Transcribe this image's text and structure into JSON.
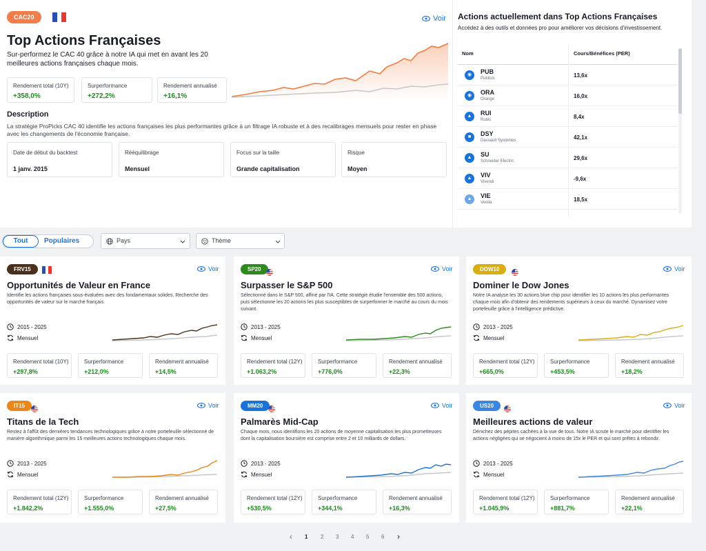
{
  "featured": {
    "tag": "CAC20",
    "tag_color": "#f07e4d",
    "voir": "Voir",
    "title": "Top Actions Françaises",
    "subtitle": "Sur-performez le CAC 40 grâce à notre IA qui met en avant les 20 meilleures actions françaises chaque mois.",
    "stats": [
      {
        "label": "Rendement total (10Y)",
        "value": "+358,0%"
      },
      {
        "label": "Surperformance",
        "value": "+272,2%"
      },
      {
        "label": "Rendement annualisé",
        "value": "+16,1%"
      }
    ],
    "description_heading": "Description",
    "description": "La stratégie ProPicks CAC 40 identifie les actions françaises les plus performantes grâce à un filtrage IA robuste et à des recalibrages mensuels pour rester en phase avec les changements de l'économie française.",
    "info": [
      {
        "label": "Date de début du backtest",
        "value": "1 janv. 2015"
      },
      {
        "label": "Rééquilibrage",
        "value": "Mensuel"
      },
      {
        "label": "Focus sur la taille",
        "value": "Grande capitalisation"
      },
      {
        "label": "Risque",
        "value": "Moyen"
      }
    ]
  },
  "holdings": {
    "title": "Actions actuellement dans Top Actions Françaises",
    "subtitle": "Accédez à des outils et données pro pour améliorer vos décisions d'investissement.",
    "col_name": "Nom",
    "col_per": "Cours/Bénéfices (PER)",
    "rows": [
      {
        "ticker": "PUB",
        "name": "Publicis",
        "per": "13,6x"
      },
      {
        "ticker": "ORA",
        "name": "Orange",
        "per": "16,0x"
      },
      {
        "ticker": "RUI",
        "name": "Rubis",
        "per": "8,4x"
      },
      {
        "ticker": "DSY",
        "name": "Dassault Systèmes",
        "per": "42,1x"
      },
      {
        "ticker": "SU",
        "name": "Schneider Electric",
        "per": "29,6x"
      },
      {
        "ticker": "VIV",
        "name": "Vivendi",
        "per": "-9,6x"
      },
      {
        "ticker": "VIE",
        "name": "Veolia",
        "per": "18,5x"
      }
    ]
  },
  "filters": {
    "tab_all": "Tout",
    "tab_popular": "Populaires",
    "country": "Pays",
    "theme": "Thème"
  },
  "cards": [
    {
      "tag": "FRV15",
      "color": "#4a2f1c",
      "flag": "fr",
      "voir": "Voir",
      "title": "Opportunités de Valeur en France",
      "desc": "Identifie les actions françaises sous-évaluées avec des fondamentaux solides. Recherche des opportunités de valeur sur le marché français.",
      "period": "2015 - 2025",
      "rebalance": "Mensuel",
      "stats": [
        {
          "label": "Rendement total (10Y)",
          "value": "+297,8%"
        },
        {
          "label": "Surperformance",
          "value": "+212,0%"
        },
        {
          "label": "Rendement annualisé",
          "value": "+14,5%"
        }
      ]
    },
    {
      "tag": "SP20",
      "color": "#2e8a1f",
      "flag": "us",
      "voir": "Voir",
      "title": "Surpasser le S&P 500",
      "desc": "Sélectionné dans le S&P 500, affiné par l'IA. Cette stratégie étudie l'ensemble des 500 actions, puis sélectionne les 20 actions les plus susceptibles de surperformer le marché au cours du mois suivant.",
      "period": "2013 - 2025",
      "rebalance": "Mensuel",
      "stats": [
        {
          "label": "Rendement total (12Y)",
          "value": "+1.063,2%"
        },
        {
          "label": "Surperformance",
          "value": "+776,0%"
        },
        {
          "label": "Rendement annualisé",
          "value": "+22,3%"
        }
      ]
    },
    {
      "tag": "DOW10",
      "color": "#d9ad14",
      "flag": "us",
      "voir": "Voir",
      "title": "Dominer le Dow Jones",
      "desc": "Notre IA analyse les 30 actions blue chip pour identifier les 10 actions les plus performantes chaque mois afin d'obtenir des rendements supérieurs à ceux du marché. Dynamisez votre portefeuille grâce à l'intelligence prédictive.",
      "period": "2013 - 2025",
      "rebalance": "Mensuel",
      "stats": [
        {
          "label": "Rendement total (12Y)",
          "value": "+665,0%"
        },
        {
          "label": "Surperformance",
          "value": "+453,5%"
        },
        {
          "label": "Rendement annualisé",
          "value": "+18,2%"
        }
      ]
    },
    {
      "tag": "IT15",
      "color": "#e8871a",
      "flag": "us",
      "voir": "Voir",
      "title": "Titans de la Tech",
      "desc": "Restez à l'affût des dernières tendances technologiques grâce à notre portefeuille sélectionné de manière algorithmique parmi les 15 meilleures actions technologiques chaque mois.",
      "period": "2013 - 2025",
      "rebalance": "Mensuel",
      "stats": [
        {
          "label": "Rendement total (12Y)",
          "value": "+1.842,2%"
        },
        {
          "label": "Surperformance",
          "value": "+1.555,0%"
        },
        {
          "label": "Rendement annualisé",
          "value": "+27,5%"
        }
      ]
    },
    {
      "tag": "MM20",
      "color": "#1a73d8",
      "flag": "us",
      "voir": "Voir",
      "title": "Palmarès Mid-Cap",
      "desc": "Chaque mois, nous identifions les 20 actions de moyenne capitalisation les plus prometteuses dont la capitalisation boursière est comprise entre 2 et 10 milliards de dollars.",
      "period": "2013 - 2025",
      "rebalance": "Mensuel",
      "stats": [
        {
          "label": "Rendement total (12Y)",
          "value": "+530,5%"
        },
        {
          "label": "Surperformance",
          "value": "+344,1%"
        },
        {
          "label": "Rendement annualisé",
          "value": "+16,3%"
        }
      ]
    },
    {
      "tag": "US20",
      "color": "#3a86e0",
      "flag": "us",
      "voir": "Voir",
      "title": "Meilleures actions de valeur",
      "desc": "Dénichez des pépites cachées à la vue de tous. Notre IA scrute le marché pour identifier les actions négligées qui se négocient à moins de 15x le PER et qui sont prêtes à rebondir.",
      "period": "2013 - 2025",
      "rebalance": "Mensuel",
      "stats": [
        {
          "label": "Rendement total (12Y)",
          "value": "+1.045,9%"
        },
        {
          "label": "Surperformance",
          "value": "+881,7%"
        },
        {
          "label": "Rendement annualisé",
          "value": "+22,1%"
        }
      ]
    }
  ],
  "pagination": {
    "prev": "‹",
    "pages": [
      "1",
      "2",
      "3",
      "4",
      "5",
      "6"
    ],
    "next": "›"
  }
}
